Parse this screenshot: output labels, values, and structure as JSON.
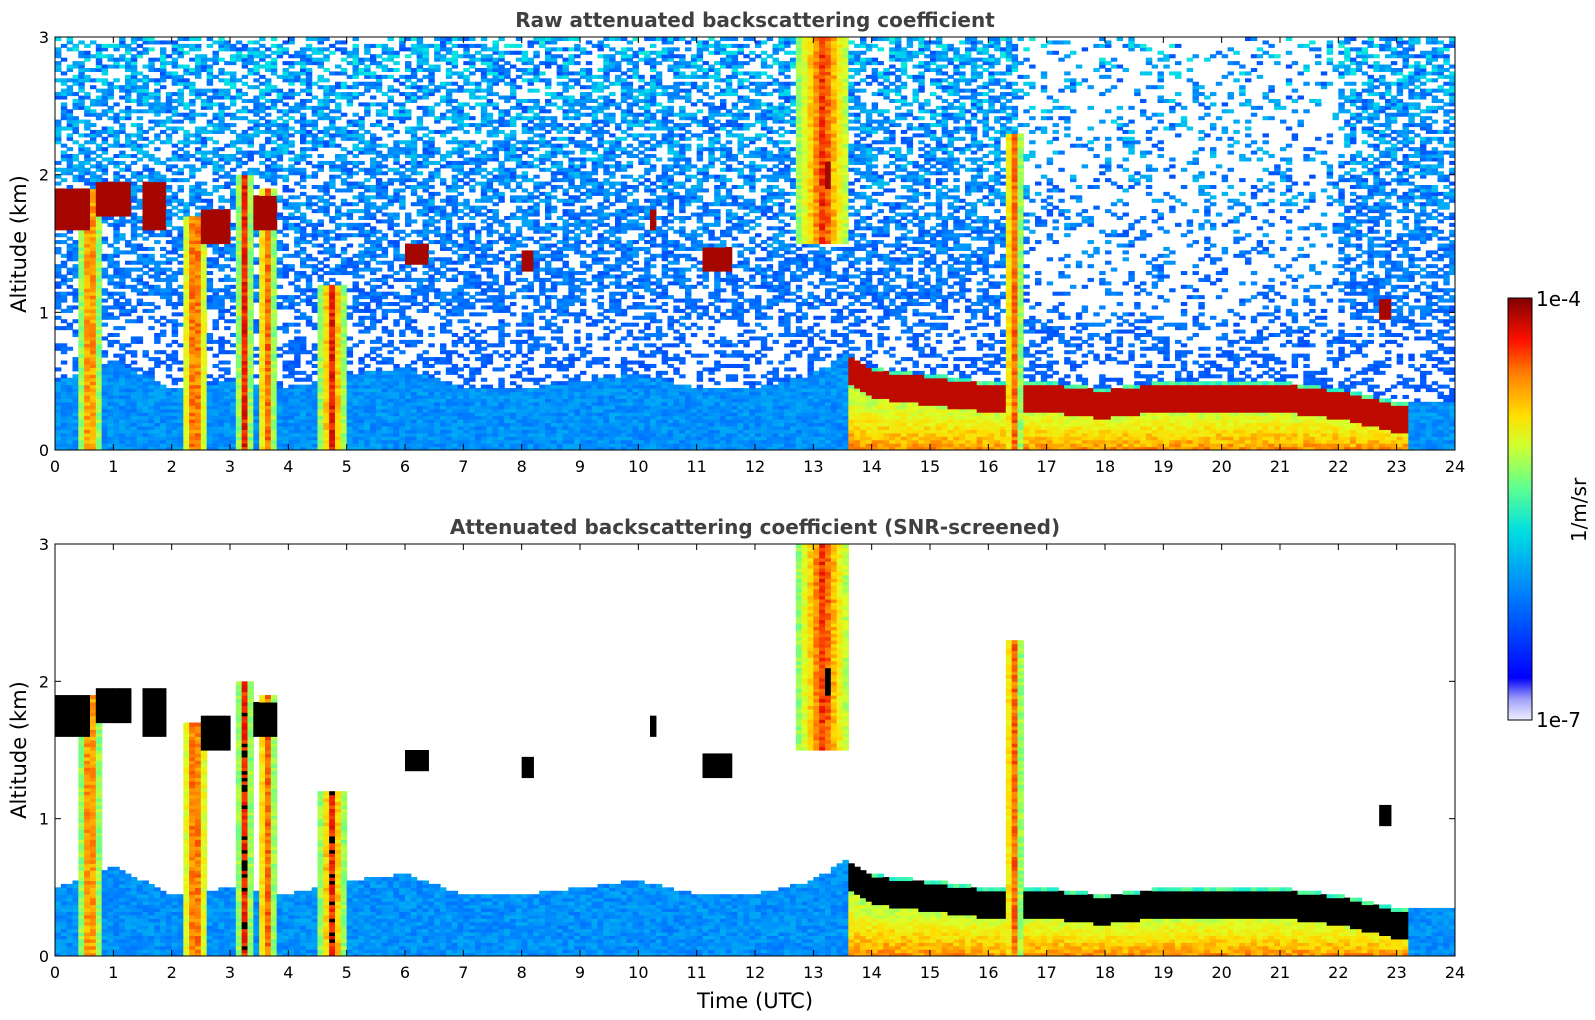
{
  "chart_data": [
    {
      "type": "heatmap",
      "title": "Raw attenuated backscattering coefficient",
      "xlabel": "",
      "ylabel": "Altitude (km)",
      "xlim": [
        0,
        24
      ],
      "ylim": [
        0,
        3
      ],
      "x_ticks": [
        "0",
        "1",
        "2",
        "3",
        "4",
        "5",
        "6",
        "7",
        "8",
        "9",
        "10",
        "11",
        "12",
        "13",
        "14",
        "15",
        "16",
        "17",
        "18",
        "19",
        "20",
        "21",
        "22",
        "23",
        "24"
      ],
      "y_ticks": [
        "0",
        "1",
        "2",
        "3"
      ],
      "screened": false
    },
    {
      "type": "heatmap",
      "title": "Attenuated backscattering coefficient (SNR-screened)",
      "xlabel": "Time (UTC)",
      "ylabel": "Altitude (km)",
      "xlim": [
        0,
        24
      ],
      "ylim": [
        0,
        3
      ],
      "x_ticks": [
        "0",
        "1",
        "2",
        "3",
        "4",
        "5",
        "6",
        "7",
        "8",
        "9",
        "10",
        "11",
        "12",
        "13",
        "14",
        "15",
        "16",
        "17",
        "18",
        "19",
        "20",
        "21",
        "22",
        "23",
        "24"
      ],
      "y_ticks": [
        "0",
        "1",
        "2",
        "3"
      ],
      "screened": true
    }
  ],
  "colorbar": {
    "label": "1/m/sr",
    "max_label": "1e-4",
    "min_label": "1e-7",
    "scale": "log",
    "range": [
      1e-07,
      0.0001
    ],
    "colormap": "jet"
  },
  "features": {
    "boundary_layer_top_km": [
      [
        0,
        0.5
      ],
      [
        1,
        0.65
      ],
      [
        2,
        0.45
      ],
      [
        3,
        0.5
      ],
      [
        4,
        0.45
      ],
      [
        5,
        0.55
      ],
      [
        6,
        0.6
      ],
      [
        7,
        0.45
      ],
      [
        8,
        0.45
      ],
      [
        9,
        0.5
      ],
      [
        10,
        0.55
      ],
      [
        11,
        0.45
      ],
      [
        12,
        0.45
      ],
      [
        13,
        0.55
      ],
      [
        13.6,
        0.7
      ],
      [
        14,
        0.6
      ],
      [
        15,
        0.55
      ],
      [
        16,
        0.5
      ],
      [
        17,
        0.5
      ],
      [
        18,
        0.45
      ],
      [
        19,
        0.5
      ],
      [
        20,
        0.5
      ],
      [
        21,
        0.5
      ],
      [
        22,
        0.45
      ],
      [
        23,
        0.35
      ],
      [
        24,
        0.35
      ]
    ],
    "clouds": [
      {
        "t0": 0.0,
        "t1": 0.55,
        "z0": 1.6,
        "z1": 1.9
      },
      {
        "t0": 0.75,
        "t1": 1.3,
        "z0": 1.7,
        "z1": 1.95
      },
      {
        "t0": 1.5,
        "t1": 1.85,
        "z0": 1.6,
        "z1": 1.95
      },
      {
        "t0": 2.5,
        "t1": 3.0,
        "z0": 1.5,
        "z1": 1.75
      },
      {
        "t0": 3.4,
        "t1": 3.8,
        "z0": 1.6,
        "z1": 1.85
      },
      {
        "t0": 8.0,
        "t1": 8.2,
        "z0": 1.3,
        "z1": 1.45
      },
      {
        "t0": 10.2,
        "t1": 10.3,
        "z0": 1.6,
        "z1": 1.75
      },
      {
        "t0": 11.1,
        "t1": 11.55,
        "z0": 1.3,
        "z1": 1.48
      },
      {
        "t0": 13.2,
        "t1": 13.35,
        "z0": 1.9,
        "z1": 2.1
      },
      {
        "t0": 6.0,
        "t1": 6.4,
        "z0": 1.35,
        "z1": 1.5
      },
      {
        "t0": 22.7,
        "t1": 22.85,
        "z0": 0.95,
        "z1": 1.1
      }
    ],
    "precip_columns": [
      {
        "t0": 0.45,
        "t1": 0.75,
        "z1": 1.9
      },
      {
        "t0": 2.2,
        "t1": 2.6,
        "z1": 1.7
      },
      {
        "t0": 3.15,
        "t1": 3.35,
        "z1": 2.0
      },
      {
        "t0": 3.5,
        "t1": 3.75,
        "z1": 1.9
      },
      {
        "t0": 4.55,
        "t1": 4.95,
        "z1": 1.2
      },
      {
        "t0": 16.3,
        "t1": 16.55,
        "z1": 2.3
      },
      {
        "t0": 12.75,
        "t1": 13.6,
        "z0": 1.5,
        "z1": 3.0
      }
    ]
  }
}
